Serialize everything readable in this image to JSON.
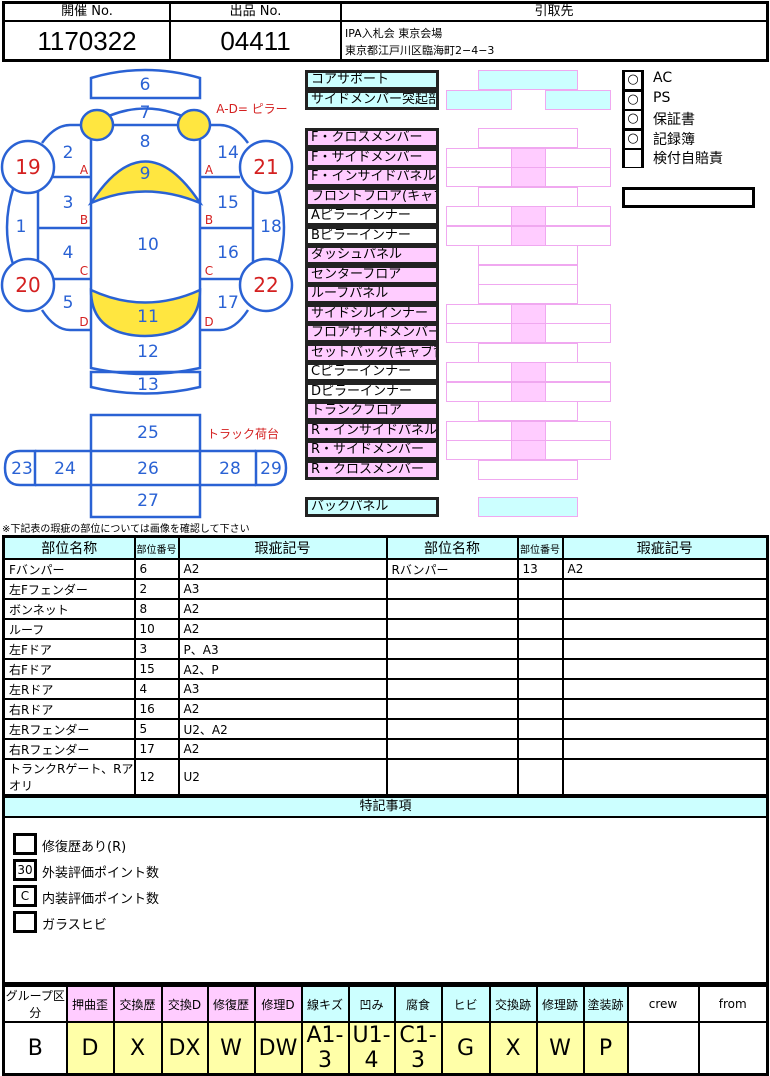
{
  "header": {
    "event_no_label": "開催 No.",
    "lot_no_label": "出品 No.",
    "pickup_label": "引取先",
    "event_no": "1170322",
    "lot_no": "04411",
    "pickup_line1": "IPA入札会 東京会場",
    "pickup_line2": "東京都江戸川区臨海町2−4−3"
  },
  "diagram": {
    "pillar_note": "A-D= ピラー",
    "truck_label": "トラック荷台",
    "panels": {
      "p1": "1",
      "p2": "2",
      "p3": "3",
      "p4": "4",
      "p5": "5",
      "p6": "6",
      "p7": "7",
      "p8": "8",
      "p9": "9",
      "p10": "10",
      "p11": "11",
      "p12": "12",
      "p13": "13",
      "p14": "14",
      "p15": "15",
      "p16": "16",
      "p17": "17",
      "p18": "18",
      "p19": "19",
      "p20": "20",
      "p21": "21",
      "p22": "22",
      "p23": "23",
      "p24": "24",
      "p25": "25",
      "p26": "26",
      "p27": "27",
      "p28": "28",
      "p29": "29"
    },
    "pillars": {
      "a": "A",
      "b": "B",
      "c": "C",
      "d": "D"
    },
    "colors": {
      "line": "#2a62d4",
      "tire": "#d42020",
      "glass": "#ffe640"
    }
  },
  "frame_parts": [
    {
      "label": "コアサポート",
      "fill": "cyan",
      "layout": "center-cyan"
    },
    {
      "label": "サイドメンバー突起部",
      "fill": "cyan",
      "layout": "sides-cyan"
    },
    {
      "label": "F・クロスメンバー",
      "fill": "pink",
      "layout": "center"
    },
    {
      "label": "F・サイドメンバー",
      "fill": "pink",
      "layout": "split"
    },
    {
      "label": "F・インサイドパネル",
      "fill": "pink",
      "layout": "split"
    },
    {
      "label": "フロントフロア(キャブ床)",
      "fill": "pink",
      "layout": "center"
    },
    {
      "label": "Aピラーインナー",
      "fill": "white",
      "layout": "split"
    },
    {
      "label": "Bピラーインナー",
      "fill": "white",
      "layout": "split"
    },
    {
      "label": "ダッシュパネル",
      "fill": "pink",
      "layout": "center"
    },
    {
      "label": "センターフロア",
      "fill": "pink",
      "layout": "center"
    },
    {
      "label": "ルーフパネル",
      "fill": "pink",
      "layout": "center"
    },
    {
      "label": "サイドシルインナー",
      "fill": "pink",
      "layout": "split"
    },
    {
      "label": "フロアサイドメンバー",
      "fill": "pink",
      "layout": "split"
    },
    {
      "label": "セットバック(キャブ背)",
      "fill": "pink",
      "layout": "center"
    },
    {
      "label": "Cピラーインナー",
      "fill": "white",
      "layout": "split"
    },
    {
      "label": "Dピラーインナー",
      "fill": "white",
      "layout": "split"
    },
    {
      "label": "トランクフロア",
      "fill": "pink",
      "layout": "center"
    },
    {
      "label": "R・インサイドパネル",
      "fill": "pink",
      "layout": "split"
    },
    {
      "label": "R・サイドメンバー",
      "fill": "pink",
      "layout": "split"
    },
    {
      "label": "R・クロスメンバー",
      "fill": "pink",
      "layout": "center"
    },
    {
      "label": "バックパネル",
      "fill": "cyan",
      "layout": "center-cyan"
    }
  ],
  "equipment": [
    {
      "mark": "○",
      "label": "AC"
    },
    {
      "mark": "○",
      "label": "PS"
    },
    {
      "mark": "○",
      "label": "保証書"
    },
    {
      "mark": "○",
      "label": "記録簿"
    },
    {
      "mark": "",
      "label": "検付自賠責"
    }
  ],
  "equipment_extra": "",
  "damage_table": {
    "note": "※下記表の瑕疵の部位については画像を確認して下さい",
    "headers": [
      "部位名称",
      "部位番号",
      "瑕疵記号",
      "部位名称",
      "部位番号",
      "瑕疵記号"
    ],
    "rows": [
      [
        "Fバンパー",
        "6",
        "A2",
        "Rバンパー",
        "13",
        "A2"
      ],
      [
        "左Fフェンダー",
        "2",
        "A3",
        "",
        "",
        ""
      ],
      [
        "ボンネット",
        "8",
        "A2",
        "",
        "",
        ""
      ],
      [
        "ルーフ",
        "10",
        "A2",
        "",
        "",
        ""
      ],
      [
        "左Fドア",
        "3",
        "P、A3",
        "",
        "",
        ""
      ],
      [
        "右Fドア",
        "15",
        "A2、P",
        "",
        "",
        ""
      ],
      [
        "左Rドア",
        "4",
        "A3",
        "",
        "",
        ""
      ],
      [
        "右Rドア",
        "16",
        "A2",
        "",
        "",
        ""
      ],
      [
        "左Rフェンダー",
        "5",
        "U2、A2",
        "",
        "",
        ""
      ],
      [
        "右Rフェンダー",
        "17",
        "A2",
        "",
        "",
        ""
      ],
      [
        "トランクRゲート、Rアオリ",
        "12",
        "U2",
        "",
        "",
        ""
      ]
    ]
  },
  "notes": {
    "title": "特記事項",
    "items": [
      {
        "value": "",
        "label": "修復歴あり(R)"
      },
      {
        "value": "30",
        "label": "外装評価ポイント数"
      },
      {
        "value": "C",
        "label": "内装評価ポイント数"
      },
      {
        "value": "",
        "label": "ガラスヒビ"
      }
    ]
  },
  "legend": {
    "headers": [
      {
        "t": "グループ区分",
        "c": "#ffffff"
      },
      {
        "t": "押曲歪",
        "c": "#ffccff"
      },
      {
        "t": "交換歴",
        "c": "#ffccff"
      },
      {
        "t": "交換D",
        "c": "#ffccff"
      },
      {
        "t": "修復歴",
        "c": "#ffccff"
      },
      {
        "t": "修理D",
        "c": "#ffccff"
      },
      {
        "t": "線キズ",
        "c": "#ccffff"
      },
      {
        "t": "凹み",
        "c": "#ccffff"
      },
      {
        "t": "腐食",
        "c": "#ccffff"
      },
      {
        "t": "ヒビ",
        "c": "#ccffff"
      },
      {
        "t": "交換跡",
        "c": "#ccffff"
      },
      {
        "t": "修理跡",
        "c": "#ccffff"
      },
      {
        "t": "塗装跡",
        "c": "#ccffff"
      },
      {
        "t": "crew",
        "c": "#ffffff"
      },
      {
        "t": "from",
        "c": "#ffffff"
      }
    ],
    "values": [
      "B",
      "D",
      "X",
      "DX",
      "W",
      "DW",
      "A1-3",
      "U1-4",
      "C1-3",
      "G",
      "X",
      "W",
      "P",
      "",
      ""
    ]
  }
}
